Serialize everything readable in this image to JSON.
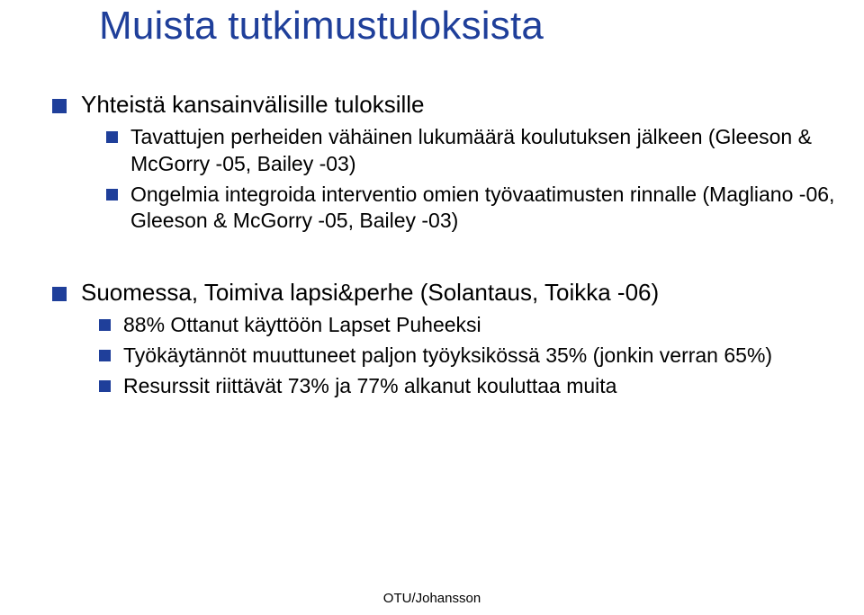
{
  "title": "Muista tutkimustuloksista",
  "section1": {
    "heading": "Yhteistä kansainvälisille tuloksille",
    "items": [
      "Tavattujen perheiden vähäinen lukumäärä koulutuksen jälkeen (Gleeson & McGorry -05, Bailey -03)",
      "Ongelmia integroida interventio omien työvaatimusten rinnalle (Magliano -06, Gleeson & McGorry -05, Bailey -03)"
    ]
  },
  "section2": {
    "heading": "Suomessa, Toimiva lapsi&perhe (Solantaus, Toikka -06)",
    "items": [
      "88% Ottanut käyttöön Lapset Puheeksi",
      "Työkäytännöt muuttuneet paljon työyksikössä 35% (jonkin verran 65%)",
      "Resurssit riittävät 73% ja 77% alkanut kouluttaa muita"
    ]
  },
  "footer": "OTU/Johansson",
  "colors": {
    "title_color": "#1f3f9a",
    "bullet_color": "#1f3f9a",
    "text_color": "#000000",
    "background": "#ffffff"
  },
  "typography": {
    "title_font": "Arial",
    "title_size_pt": 33,
    "body_font": "Comic Sans MS",
    "l1_size_pt": 20,
    "l2_size_pt": 17,
    "footer_size_pt": 11
  }
}
